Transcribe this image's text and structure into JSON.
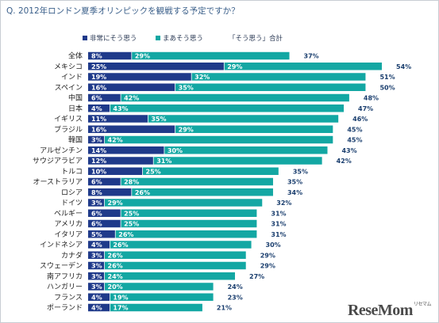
{
  "title": "Q. 2012年ロンドン夏季オリンピックを観戦する予定ですか？",
  "legend": {
    "strong": "非常にそう思う",
    "moderate": "まあそう思う",
    "total": "「そう思う」合計"
  },
  "logo": {
    "text": "ReseMom",
    "sup": "リセマム"
  },
  "colors": {
    "strong": "#1f3a8a",
    "moderate": "#13a7a3",
    "total_text": "#1a3e6e"
  },
  "chart_data": {
    "type": "bar",
    "orientation": "horizontal",
    "stacked": true,
    "categories": [
      "全体",
      "メキシコ",
      "インド",
      "スペイン",
      "中国",
      "日本",
      "イギリス",
      "ブラジル",
      "韓国",
      "アルゼンチン",
      "サウジアラビア",
      "トルコ",
      "オーストラリア",
      "ロシア",
      "ドイツ",
      "ベルギー",
      "アメリカ",
      "イタリア",
      "インドネシア",
      "カナダ",
      "スウェーデン",
      "南アフリカ",
      "ハンガリー",
      "フランス",
      "ポーランド"
    ],
    "series": [
      {
        "name": "非常にそう思う",
        "values": [
          8,
          25,
          19,
          16,
          6,
          4,
          11,
          16,
          3,
          14,
          12,
          10,
          6,
          8,
          3,
          6,
          6,
          5,
          4,
          3,
          3,
          3,
          3,
          4,
          4
        ]
      },
      {
        "name": "まあそう思う",
        "values": [
          29,
          29,
          32,
          35,
          42,
          43,
          35,
          29,
          42,
          30,
          31,
          25,
          28,
          26,
          29,
          25,
          25,
          26,
          26,
          26,
          26,
          24,
          20,
          19,
          17
        ]
      }
    ],
    "totals": [
      37,
      54,
      51,
      50,
      48,
      47,
      46,
      45,
      45,
      43,
      42,
      35,
      35,
      34,
      32,
      31,
      31,
      31,
      30,
      29,
      29,
      27,
      24,
      23,
      21
    ],
    "xlim": [
      0,
      54
    ],
    "grid": false,
    "legend_position": "top"
  }
}
